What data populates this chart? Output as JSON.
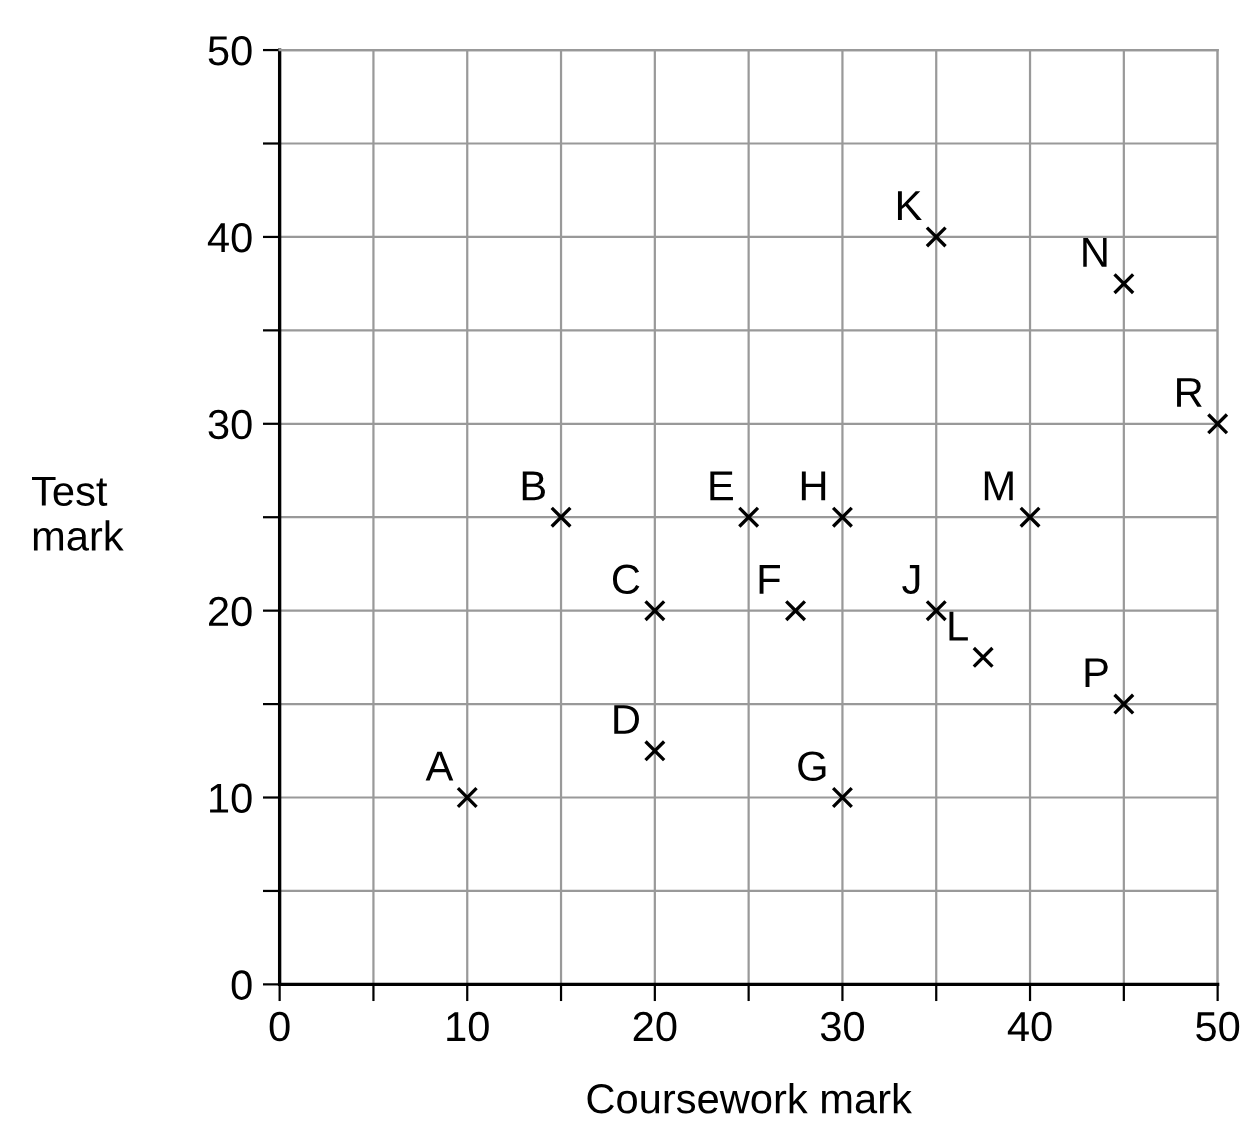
{
  "chart_data": {
    "type": "scatter",
    "xlabel": "Coursework mark",
    "ylabel": "Test\nmark",
    "x": [
      10,
      15,
      20,
      20,
      25,
      27.5,
      30,
      30,
      35,
      35,
      37.5,
      40,
      45,
      45,
      50
    ],
    "values": [
      10,
      25,
      20,
      12.5,
      25,
      20,
      10,
      25,
      20,
      40,
      17.5,
      25,
      37.5,
      15,
      30
    ],
    "color": "#000000",
    "marker": "cross",
    "grid": true,
    "xlim": [
      0,
      50
    ],
    "ylim": [
      0,
      50
    ],
    "xticks": [
      0,
      {
        "value": 5,
        "label": null
      },
      10,
      {
        "value": 15,
        "label": null
      },
      20,
      {
        "value": 25,
        "label": null
      },
      30,
      {
        "value": 35,
        "label": null
      },
      40,
      {
        "value": 45,
        "label": null
      },
      50
    ],
    "yticks": [
      0,
      {
        "value": 5,
        "label": null
      },
      10,
      {
        "value": 15,
        "label": null
      },
      20,
      {
        "value": 25,
        "label": null
      },
      30,
      {
        "value": 35,
        "label": null
      },
      40,
      {
        "value": 45,
        "label": null
      },
      50
    ],
    "annotations": [
      {
        "text": "A",
        "x": 10,
        "y": 10
      },
      {
        "text": "B",
        "x": 15,
        "y": 25
      },
      {
        "text": "C",
        "x": 20,
        "y": 20
      },
      {
        "text": "D",
        "x": 20,
        "y": 12.5
      },
      {
        "text": "E",
        "x": 25,
        "y": 25
      },
      {
        "text": "F",
        "x": 27.5,
        "y": 20
      },
      {
        "text": "G",
        "x": 30,
        "y": 10
      },
      {
        "text": "H",
        "x": 30,
        "y": 25
      },
      {
        "text": "J",
        "x": 35,
        "y": 20
      },
      {
        "text": "K",
        "x": 35,
        "y": 40
      },
      {
        "text": "L",
        "x": 37.5,
        "y": 17.5
      },
      {
        "text": "M",
        "x": 40,
        "y": 25
      },
      {
        "text": "N",
        "x": 45,
        "y": 37.5
      },
      {
        "text": "P",
        "x": 45,
        "y": 15
      },
      {
        "text": "R",
        "x": 50,
        "y": 30
      }
    ]
  }
}
